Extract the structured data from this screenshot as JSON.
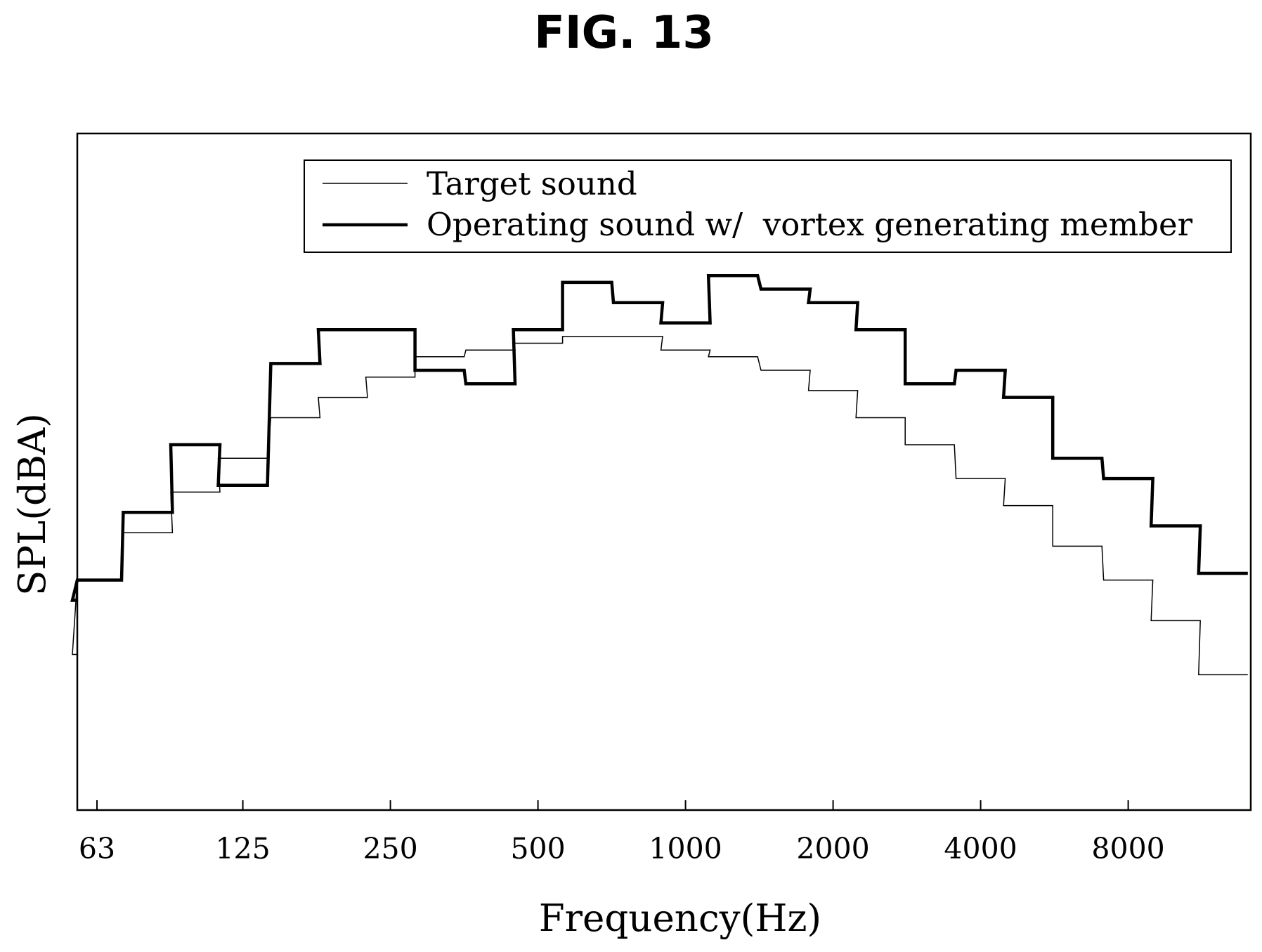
{
  "figure_title": "FIG. 13",
  "chart_data": {
    "type": "line",
    "step": true,
    "xlabel": "Frequency(Hz)",
    "ylabel": "SPL(dBA)",
    "x_scale": "log2",
    "x_tick_labels": [
      "63",
      "125",
      "250",
      "500",
      "1000",
      "2000",
      "4000",
      "8000"
    ],
    "y_tick_labels": [],
    "band_centers_hz": [
      50,
      63,
      80,
      100,
      125,
      160,
      200,
      250,
      315,
      400,
      500,
      630,
      800,
      1000,
      1250,
      1600,
      2000,
      2500,
      3150,
      4000,
      5000,
      6300,
      8000,
      10000,
      12500
    ],
    "ylim": [
      0,
      100
    ],
    "grid": false,
    "legend_position": "top-right",
    "series": [
      {
        "name": "Target sound",
        "style": "thin",
        "values": [
          23,
          34,
          41,
          47,
          52,
          58,
          61,
          64,
          67,
          68,
          69,
          70,
          70,
          68,
          67,
          65,
          62,
          58,
          54,
          49,
          45,
          39,
          34,
          28,
          20
        ]
      },
      {
        "name": "Operating sound w/  vortex generating member",
        "style": "thick",
        "values": [
          31,
          34,
          44,
          54,
          48,
          66,
          71,
          71,
          65,
          63,
          71,
          78,
          75,
          72,
          79,
          77,
          75,
          71,
          63,
          65,
          61,
          52,
          49,
          42,
          35
        ]
      }
    ]
  }
}
